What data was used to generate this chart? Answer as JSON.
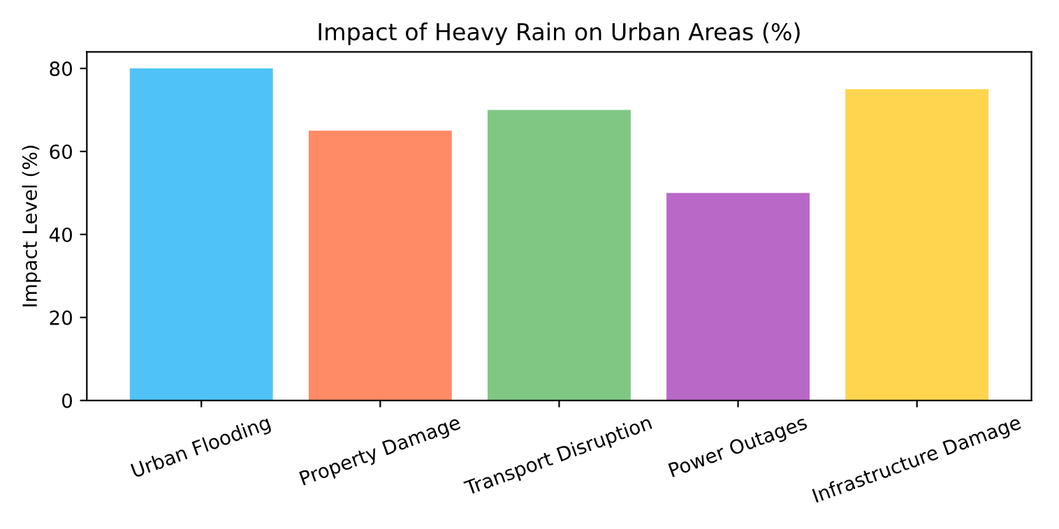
{
  "chart_data": {
    "type": "bar",
    "title": "Impact of Heavy Rain on Urban Areas (%)",
    "ylabel": "Impact Level (%)",
    "categories": [
      "Urban Flooding",
      "Property Damage",
      "Transport Disruption",
      "Power Outages",
      "Infrastructure Damage"
    ],
    "values": [
      80,
      65,
      70,
      50,
      75
    ],
    "colors": [
      "#4fc3f7",
      "#ff8a65",
      "#81c784",
      "#ba68c8",
      "#ffd54f"
    ],
    "ylim": [
      0,
      84
    ],
    "yticks": [
      0,
      20,
      40,
      60,
      80
    ],
    "grid": false
  }
}
